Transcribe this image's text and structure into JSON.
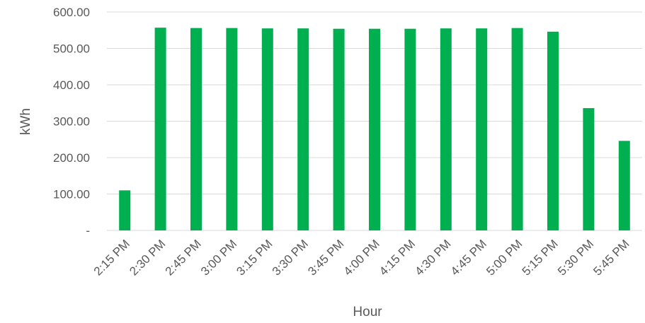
{
  "colors": {
    "bar": "#00B050",
    "grid": "#D9D9D9",
    "text": "#595959"
  },
  "chart_data": {
    "type": "bar",
    "title": "",
    "xlabel": "Hour",
    "ylabel": "kWh",
    "ylim": [
      0,
      600
    ],
    "yticks": [
      0,
      100,
      200,
      300,
      400,
      500,
      600
    ],
    "ytick_labels": [
      "-",
      "100.00",
      "200.00",
      "300.00",
      "400.00",
      "500.00",
      "600.00"
    ],
    "grid": true,
    "legend": "none",
    "categories": [
      "2:15 PM",
      "2:30 PM",
      "2:45 PM",
      "3:00 PM",
      "3:15 PM",
      "3:30 PM",
      "3:45 PM",
      "4:00 PM",
      "4:15 PM",
      "4:30 PM",
      "4:45 PM",
      "5:00 PM",
      "5:15 PM",
      "5:30 PM",
      "5:45 PM"
    ],
    "values": [
      110,
      557,
      556,
      556,
      555,
      555,
      554,
      554,
      554,
      555,
      555,
      556,
      546,
      336,
      246
    ]
  }
}
